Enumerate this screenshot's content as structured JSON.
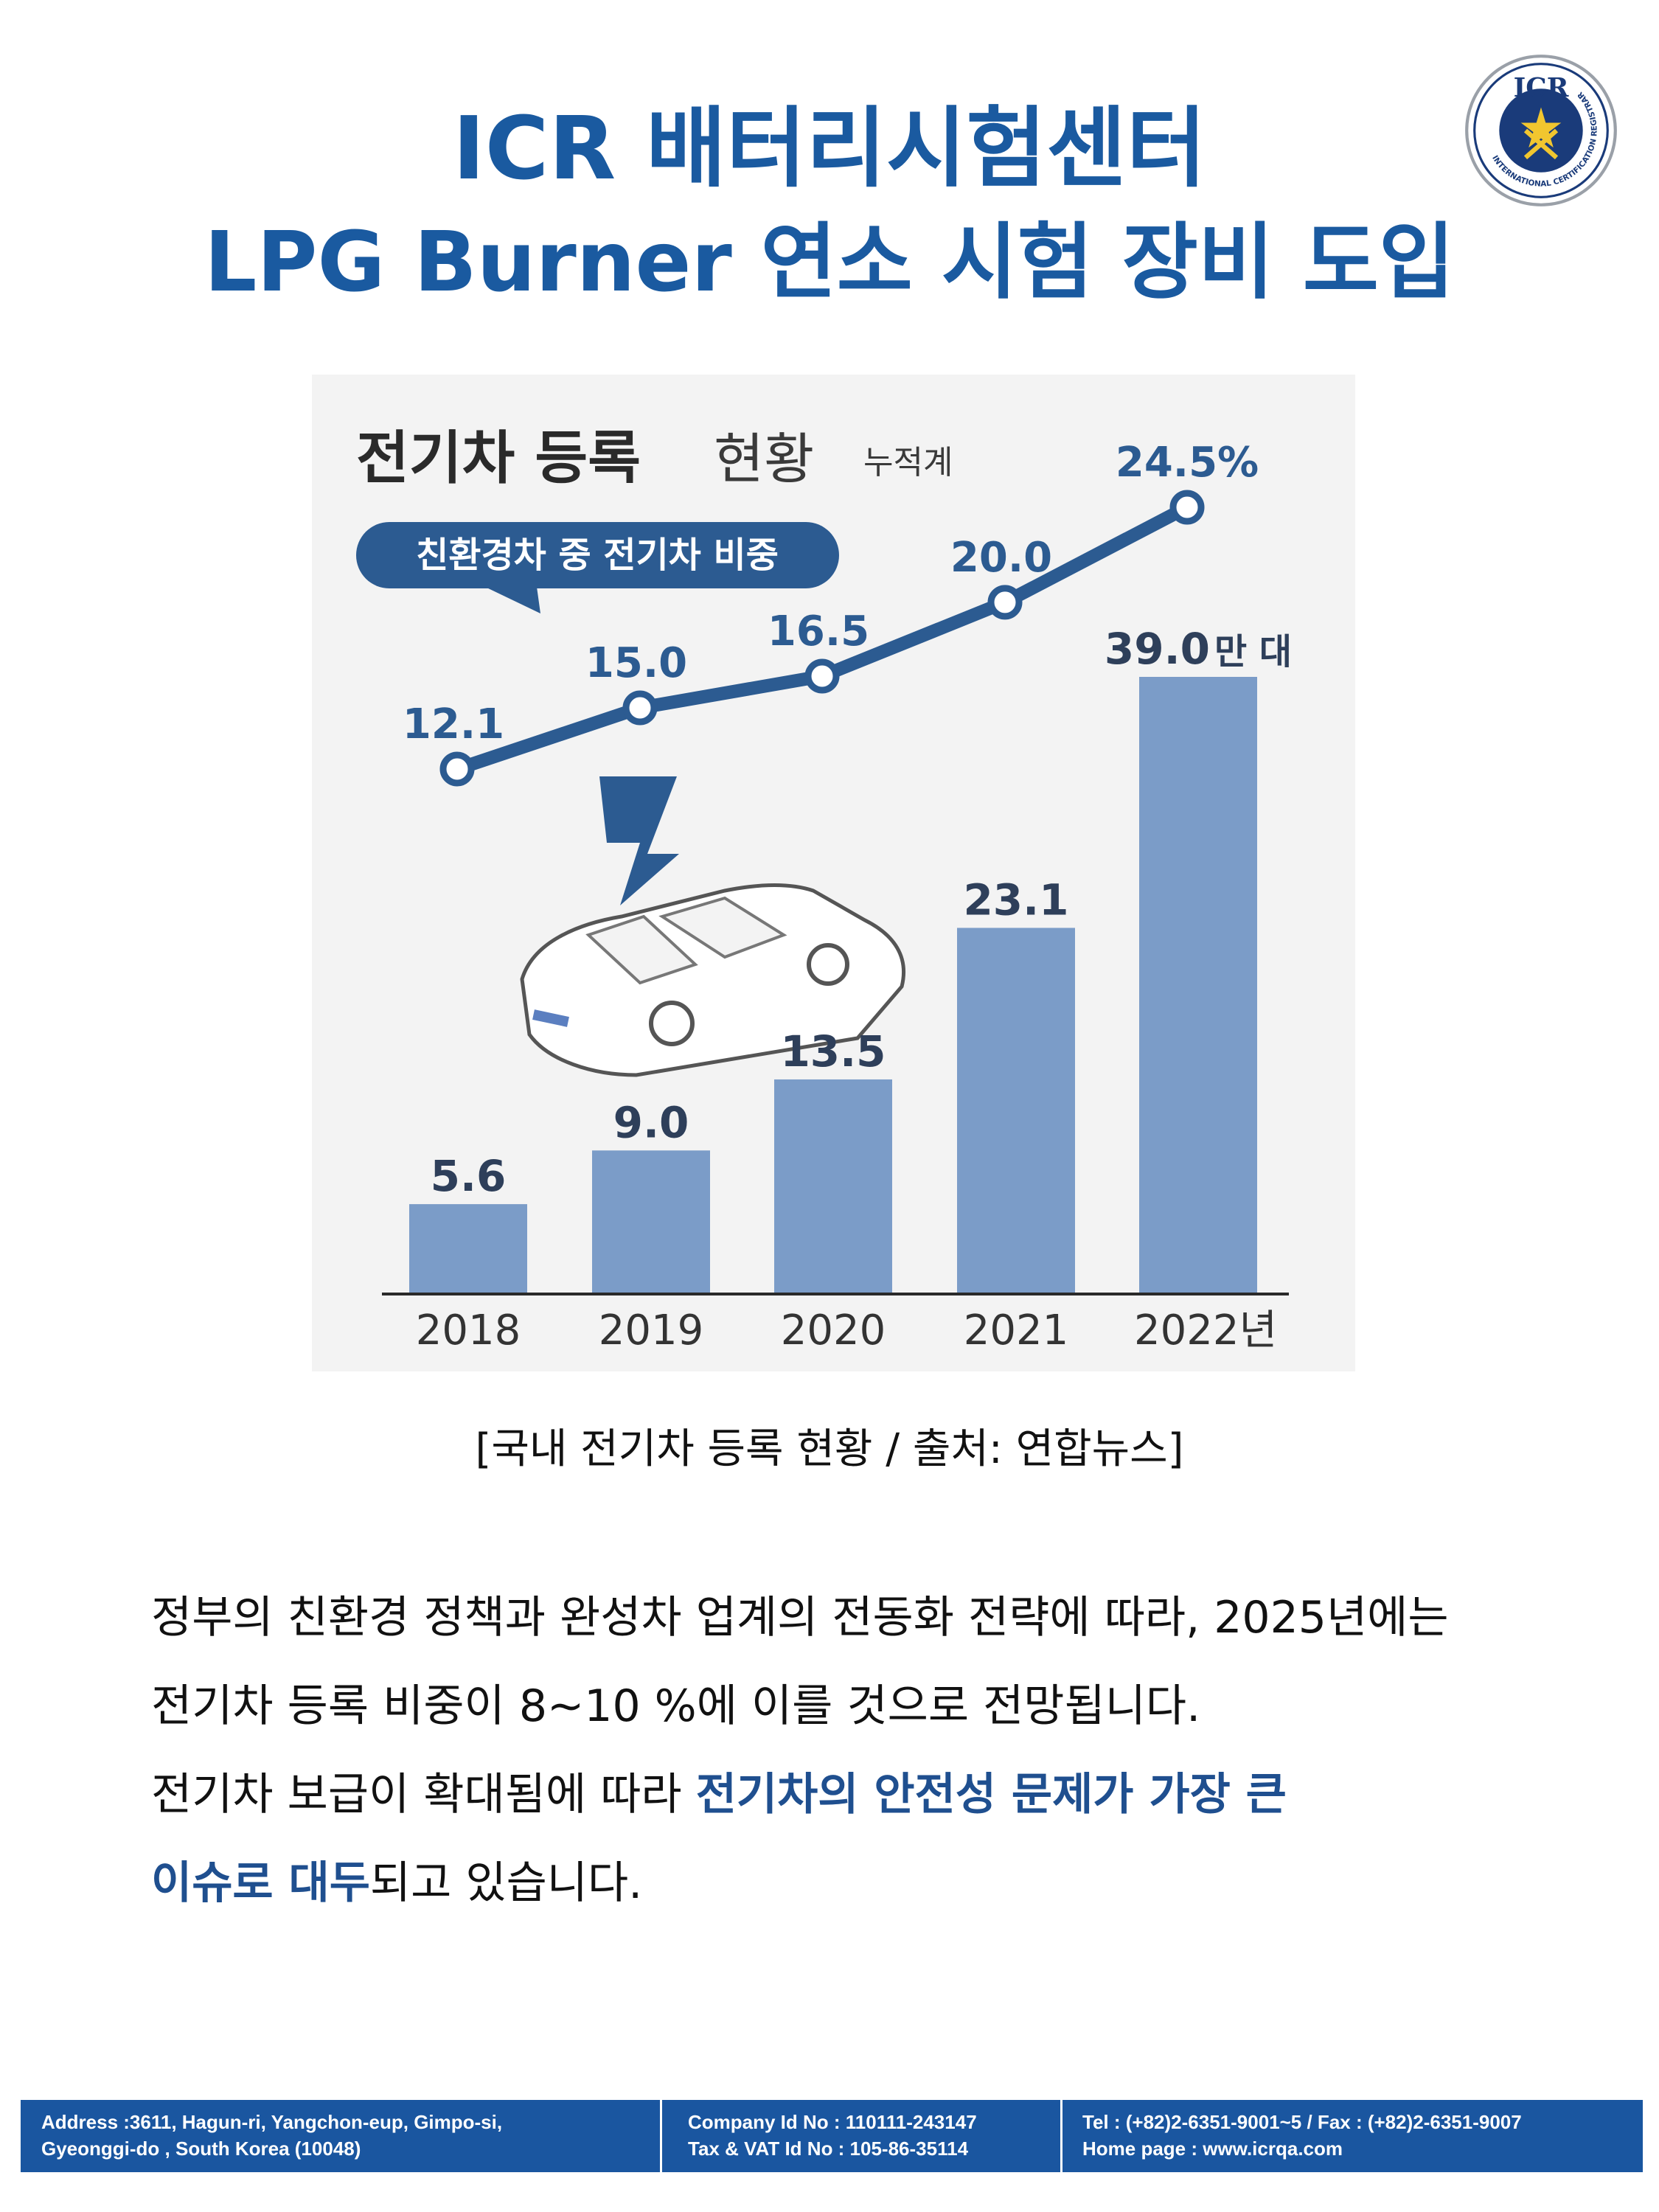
{
  "header": {
    "title_line1": "ICR 배터리시험센터",
    "title_line2": "LPG Burner 연소 시험 장비 도입",
    "logo_text": "ICR",
    "logo_ring_text": "INTERNATIONAL CERTIFICATION REGISTRAR"
  },
  "chart_data": {
    "type": "bar",
    "title_bold": "전기차 등록",
    "title_light": "현황",
    "title_small": "누적계",
    "callout": "친환경차 중 전기차 비중",
    "categories": [
      "2018",
      "2019",
      "2020",
      "2021",
      "2022"
    ],
    "last_category_suffix": "년",
    "series": [
      {
        "values": [
          5.6,
          9.0,
          13.5,
          23.1,
          39.0
        ],
        "labels": [
          "5.6",
          "9.0",
          "13.5",
          "23.1",
          "39.0"
        ],
        "unit": "만 대",
        "color": "#7b9cc8"
      },
      {
        "values": [
          12.1,
          15.0,
          16.5,
          20.0,
          24.5
        ],
        "labels": [
          "12.1",
          "15.0",
          "16.5",
          "20.0",
          "24.5%"
        ],
        "color": "#2c5b91"
      }
    ],
    "bar_ylim": [
      0,
      39.0
    ],
    "grid": false
  },
  "caption": "[국내 전기차 등록 현황 / 출처: 연합뉴스]",
  "body": {
    "line1": "정부의 친환경 정책과 완성차 업계의 전동화 전략에 따라, 2025년에는",
    "line2": "전기차 등록 비중이 8~10 %에 이를 것으로 전망됩니다.",
    "line3_a": "전기차 보급이 확대됨에 따라 ",
    "line3_b": "전기차의 안전성 문제가 가장 큰",
    "line4_a": "이슈로 대두",
    "line4_b": "되고 있습니다."
  },
  "footer": {
    "address_1": "Address :3611, Hagun-ri, Yangchon-eup, Gimpo-si,",
    "address_2": "Gyeonggi-do , South Korea (10048)",
    "company_1": "Company Id No : 110111-243147",
    "company_2": "Tax & VAT Id No : 105-86-35114",
    "contact_1": "Tel : (+82)2-6351-9001~5 / Fax : (+82)2-6351-9007",
    "contact_2": "Home page : www.icrqa.com"
  },
  "colors": {
    "title": "#1a5aa0",
    "bar": "#7b9cc8",
    "line": "#2c5b91",
    "footer": "#1a56a0"
  }
}
